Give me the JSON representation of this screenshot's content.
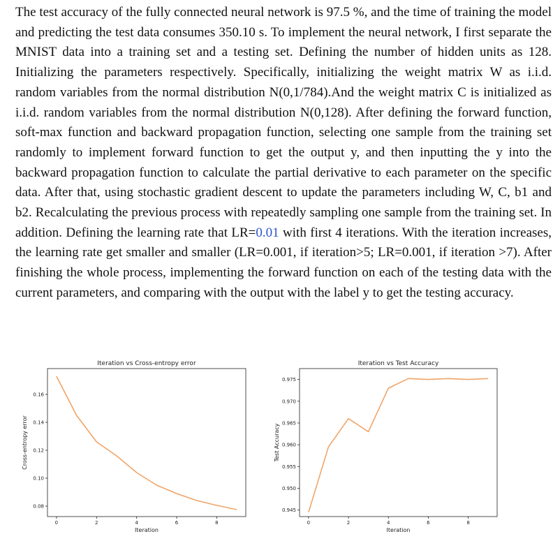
{
  "paragraph": {
    "part1": "The test accuracy of the fully connected neural network is 97.5 %, and the time of training the model and predicting the test data consumes 350.10 s. To implement the neural network, I first separate the MNIST data into a training set and a testing set. Defining the number of hidden units as 128. Initializing the parameters respectively. Specifically, initializing the weight matrix W as i.i.d. random variables from the normal distribution N(0,1/784).And the weight matrix C is initialized as i.i.d. random variables from the normal distribution N(0,128). After defining the forward function, soft-max function and backward propagation function, selecting one sample from the training set randomly to implement forward function to get the output y, and then inputting the y into the backward propagation function to calculate the partial derivative to each parameter on the specific data. After that, using stochastic gradient descent to update the parameters including W, C, b1 and b2. Recalculating the previous process with repeatedly sampling one sample from the training set. In addition. Defining the learning rate that LR=",
    "lr_value": "0.01",
    "part2": " with first 4 iterations. With the iteration increases, the learning rate get smaller and smaller (LR=0.001, if iteration>5; LR=0.001, if iteration >7). After finishing the whole process, implementing the forward function on each of the testing data with the current parameters, and comparing with the output with the label y to get the testing accuracy."
  },
  "colors": {
    "line": "#f0a468",
    "lr_highlight": "#2a55c8"
  },
  "chart_data": [
    {
      "type": "line",
      "title": "Iteration vs Cross-entropy error",
      "xlabel": "Iteration",
      "ylabel": "Cross-entropy error",
      "xlim": [
        -0.45,
        9.45
      ],
      "ylim": [
        0.0725,
        0.1785
      ],
      "xticks": [
        0,
        2,
        4,
        6,
        8
      ],
      "xtick_labels": [
        "0",
        "2",
        "4",
        "6",
        "8"
      ],
      "yticks": [
        0.08,
        0.1,
        0.12,
        0.14,
        0.16
      ],
      "ytick_labels": [
        "0.08",
        "0.10",
        "0.12",
        "0.14",
        "0.16"
      ],
      "grid": false,
      "x": [
        0,
        1,
        2,
        3,
        4,
        5,
        6,
        7,
        8,
        9
      ],
      "y": [
        0.173,
        0.145,
        0.126,
        0.116,
        0.104,
        0.095,
        0.089,
        0.084,
        0.0805,
        0.0775
      ]
    },
    {
      "type": "line",
      "title": "Iteration vs Test Accuracy",
      "xlabel": "Iteration",
      "ylabel": "Test Accuracy",
      "xlim": [
        -0.45,
        9.45
      ],
      "ylim": [
        0.9435,
        0.9775
      ],
      "xticks": [
        0,
        2,
        4,
        6,
        8
      ],
      "xtick_labels": [
        "0",
        "2",
        "4",
        "6",
        "8"
      ],
      "yticks": [
        0.945,
        0.95,
        0.955,
        0.96,
        0.965,
        0.97,
        0.975
      ],
      "ytick_labels": [
        "0.945",
        "0.950",
        "0.955",
        "0.960",
        "0.965",
        "0.970",
        "0.975"
      ],
      "grid": false,
      "x": [
        0,
        1,
        2,
        3,
        4,
        5,
        6,
        7,
        8,
        9
      ],
      "y": [
        0.9445,
        0.9595,
        0.966,
        0.963,
        0.973,
        0.9752,
        0.975,
        0.9752,
        0.975,
        0.9752
      ]
    }
  ]
}
